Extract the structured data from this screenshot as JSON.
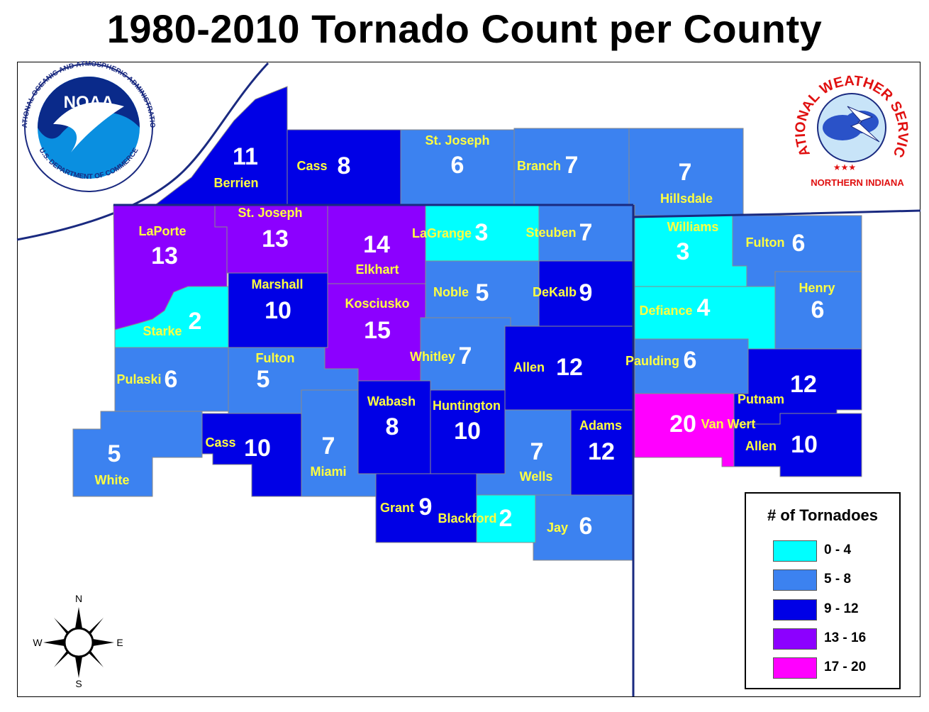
{
  "title": "1980-2010 Tornado Count per County",
  "logos": {
    "noaa": {
      "center_text": "NOAA",
      "ring_text": "NATIONAL OCEANIC AND ATMOSPHERIC ADMINISTRATION",
      "bottom_text": "U.S. DEPARTMENT OF COMMERCE"
    },
    "nws": {
      "ring_text": "NATIONAL WEATHER SERVICE",
      "office": "NORTHERN INDIANA"
    }
  },
  "legend": {
    "title": "# of Tornadoes",
    "classes": [
      {
        "range": "0 - 4",
        "color": "#00ffff"
      },
      {
        "range": "5 - 8",
        "color": "#3c82f0"
      },
      {
        "range": "9 - 12",
        "color": "#0000e6"
      },
      {
        "range": "13 - 16",
        "color": "#8c00ff"
      },
      {
        "range": "17 - 20",
        "color": "#ff00ff"
      }
    ]
  },
  "compass": {
    "n": "N",
    "s": "S",
    "e": "E",
    "w": "W"
  },
  "counties": [
    {
      "name": "Berrien",
      "count": "11"
    },
    {
      "name": "Cass",
      "count": "8"
    },
    {
      "name": "St. Joseph",
      "count": "6"
    },
    {
      "name": "Branch",
      "count": "7"
    },
    {
      "name": "Hillsdale",
      "count": "7"
    },
    {
      "name": "LaPorte",
      "count": "13"
    },
    {
      "name": "St. Joseph",
      "count": "13"
    },
    {
      "name": "Elkhart",
      "count": "14"
    },
    {
      "name": "LaGrange",
      "count": "3"
    },
    {
      "name": "Steuben",
      "count": "7"
    },
    {
      "name": "Williams",
      "count": "3"
    },
    {
      "name": "Fulton",
      "count": "6"
    },
    {
      "name": "Starke",
      "count": "2"
    },
    {
      "name": "Marshall",
      "count": "10"
    },
    {
      "name": "Kosciusko",
      "count": "15"
    },
    {
      "name": "Noble",
      "count": "5"
    },
    {
      "name": "DeKalb",
      "count": "9"
    },
    {
      "name": "Defiance",
      "count": "4"
    },
    {
      "name": "Henry",
      "count": "6"
    },
    {
      "name": "Pulaski",
      "count": "6"
    },
    {
      "name": "Fulton",
      "count": "5"
    },
    {
      "name": "Whitley",
      "count": "7"
    },
    {
      "name": "Allen",
      "count": "12"
    },
    {
      "name": "Paulding",
      "count": "6"
    },
    {
      "name": "Putnam",
      "count": "12"
    },
    {
      "name": "White",
      "count": "5"
    },
    {
      "name": "Cass",
      "count": "10"
    },
    {
      "name": "Miami",
      "count": "7"
    },
    {
      "name": "Wabash",
      "count": "8"
    },
    {
      "name": "Huntington",
      "count": "10"
    },
    {
      "name": "Wells",
      "count": "7"
    },
    {
      "name": "Adams",
      "count": "12"
    },
    {
      "name": "Van Wert",
      "count": "20"
    },
    {
      "name": "Allen",
      "count": "10"
    },
    {
      "name": "Grant",
      "count": "9"
    },
    {
      "name": "Blackford",
      "count": "2"
    },
    {
      "name": "Jay",
      "count": "6"
    }
  ]
}
